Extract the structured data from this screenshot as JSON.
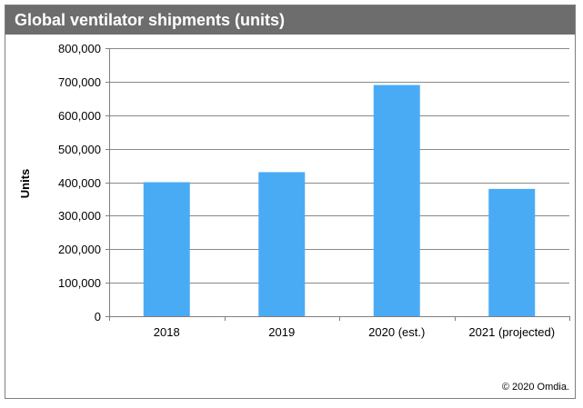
{
  "chart_data": {
    "type": "bar",
    "title": "Global ventilator shipments (units)",
    "categories": [
      "2018",
      "2019",
      "2020 (est.)",
      "2021 (projected)"
    ],
    "values": [
      400000,
      430000,
      690000,
      380000
    ],
    "xlabel": "",
    "ylabel": "Units",
    "ylim": [
      0,
      800000
    ],
    "yticks": [
      0,
      100000,
      200000,
      300000,
      400000,
      500000,
      600000,
      700000,
      800000
    ],
    "ytick_labels": [
      "0",
      "100,000",
      "200,000",
      "300,000",
      "400,000",
      "500,000",
      "600,000",
      "700,000",
      "800,000"
    ],
    "grid": true,
    "bar_color": "#4aabf5",
    "gridline_color": "#898989"
  },
  "footer": {
    "copyright": "© 2020 Omdia."
  },
  "colors": {
    "title_bar": "#6d6d6d",
    "frame_border": "#7f7f7f"
  }
}
